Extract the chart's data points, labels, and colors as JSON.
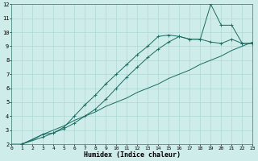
{
  "xlabel": "Humidex (Indice chaleur)",
  "bg_color": "#cdecea",
  "grid_color": "#aed8d5",
  "line_color": "#1a6b60",
  "xlim": [
    0,
    23
  ],
  "ylim": [
    2,
    12
  ],
  "xticks": [
    0,
    1,
    2,
    3,
    4,
    5,
    6,
    7,
    8,
    9,
    10,
    11,
    12,
    13,
    14,
    15,
    16,
    17,
    18,
    19,
    20,
    21,
    22,
    23
  ],
  "yticks": [
    2,
    3,
    4,
    5,
    6,
    7,
    8,
    9,
    10,
    11,
    12
  ],
  "line1_x": [
    0,
    1,
    2,
    3,
    4,
    5,
    6,
    7,
    8,
    9,
    10,
    11,
    12,
    13,
    14,
    15,
    16,
    17,
    18,
    19,
    20,
    21,
    22,
    23
  ],
  "line1_y": [
    2.0,
    2.0,
    2.3,
    2.7,
    3.0,
    3.3,
    3.7,
    4.0,
    4.3,
    4.7,
    5.0,
    5.3,
    5.7,
    6.0,
    6.3,
    6.7,
    7.0,
    7.3,
    7.7,
    8.0,
    8.3,
    8.7,
    9.0,
    9.3
  ],
  "line2_x": [
    1,
    3,
    4,
    5,
    6,
    7,
    8,
    9,
    10,
    11,
    12,
    13,
    14,
    15,
    16,
    17,
    18,
    19,
    20,
    21,
    22,
    23
  ],
  "line2_y": [
    2.0,
    2.5,
    2.8,
    3.1,
    3.5,
    4.0,
    4.5,
    5.2,
    6.0,
    6.8,
    7.5,
    8.2,
    8.8,
    9.3,
    9.7,
    9.5,
    9.5,
    9.3,
    9.2,
    9.5,
    9.2,
    9.2
  ],
  "line3_x": [
    1,
    3,
    4,
    5,
    6,
    7,
    8,
    9,
    10,
    11,
    12,
    13,
    14,
    15,
    16,
    17,
    18,
    19,
    20,
    21,
    22,
    23
  ],
  "line3_y": [
    2.0,
    2.7,
    2.8,
    3.2,
    4.0,
    4.8,
    5.5,
    6.3,
    7.0,
    7.7,
    8.4,
    9.0,
    9.7,
    9.8,
    9.7,
    9.5,
    9.5,
    12.0,
    10.5,
    10.5,
    9.2,
    9.2
  ]
}
